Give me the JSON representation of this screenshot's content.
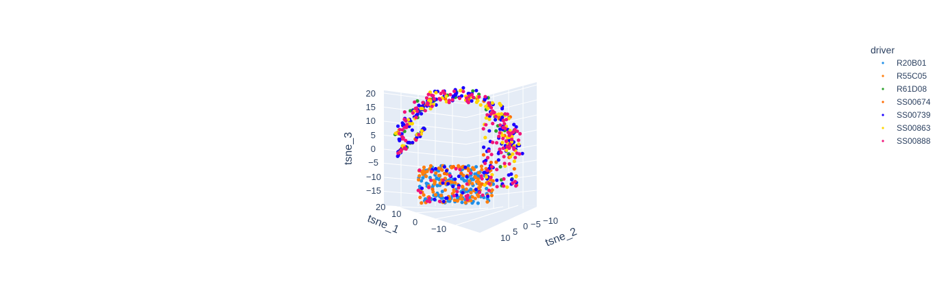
{
  "chart_data": {
    "type": "scatter",
    "subtype": "3d-scatter",
    "axes": {
      "x": {
        "label": "tsne_1",
        "range": [
          -20,
          25
        ],
        "ticks": [
          20,
          10,
          0,
          -10
        ]
      },
      "y": {
        "label": "tsne_2",
        "range": [
          -12,
          14
        ],
        "ticks": [
          10,
          5,
          0,
          -5,
          -10
        ]
      },
      "z": {
        "label": "tsne_3",
        "range": [
          -20,
          22
        ],
        "ticks": [
          20,
          15,
          10,
          5,
          0,
          -5,
          -10,
          -15
        ]
      }
    },
    "grid": true,
    "legend": {
      "title": "driver",
      "placement": "right"
    },
    "series": [
      {
        "name": "R20B01",
        "color": "#1f8fe8",
        "cluster": "bottom",
        "n": 140
      },
      {
        "name": "R55C05",
        "color": "#ff7f0e",
        "cluster": "bottom",
        "n": 120
      },
      {
        "name": "R61D08",
        "color": "#2ca02c",
        "cluster": "top",
        "n": 45
      },
      {
        "name": "SS00674",
        "color": "#ff6a00",
        "cluster": "mixed",
        "n": 40
      },
      {
        "name": "SS00739",
        "color": "#1a00ff",
        "cluster": "mixed",
        "n": 170
      },
      {
        "name": "SS00863",
        "color": "#ffd700",
        "cluster": "top",
        "n": 80
      },
      {
        "name": "SS00888",
        "color": "#f0147a",
        "cluster": "mixed",
        "n": 150
      }
    ]
  }
}
